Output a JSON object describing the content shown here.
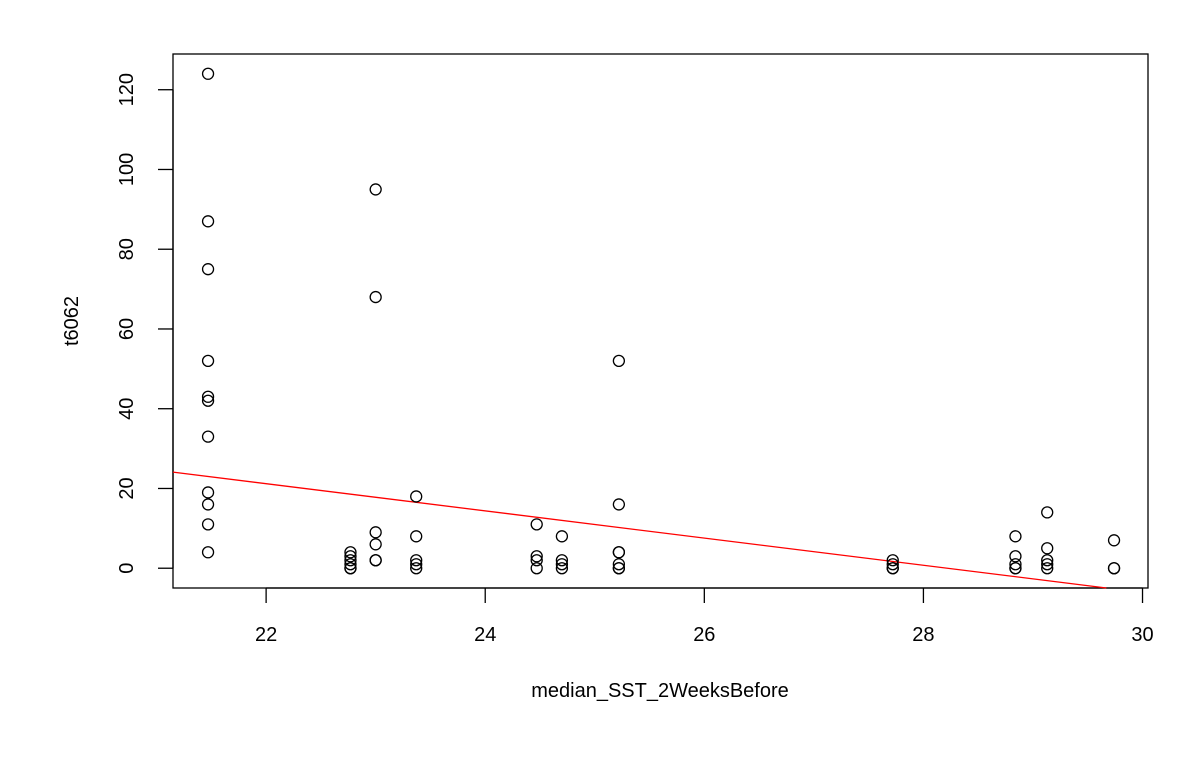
{
  "chart_data": {
    "type": "scatter",
    "title": "",
    "xlabel": "median_SST_2WeeksBefore",
    "ylabel": "t6062",
    "xlim": [
      21.15,
      30.05
    ],
    "ylim": [
      -4.96,
      128.96
    ],
    "x_ticks": [
      22,
      24,
      26,
      28,
      30
    ],
    "y_ticks": [
      0,
      20,
      40,
      60,
      80,
      100,
      120
    ],
    "x_tick_labels": [
      "22",
      "24",
      "26",
      "28",
      "30"
    ],
    "y_tick_labels": [
      "0",
      "20",
      "40",
      "60",
      "80",
      "100",
      "120"
    ],
    "grid": false,
    "legend": "none",
    "point_style": "open circle",
    "points": [
      {
        "x": 21.47,
        "y": 124
      },
      {
        "x": 21.47,
        "y": 87
      },
      {
        "x": 21.47,
        "y": 75
      },
      {
        "x": 21.47,
        "y": 52
      },
      {
        "x": 21.47,
        "y": 43
      },
      {
        "x": 21.47,
        "y": 42
      },
      {
        "x": 21.47,
        "y": 33
      },
      {
        "x": 21.47,
        "y": 19
      },
      {
        "x": 21.47,
        "y": 16
      },
      {
        "x": 21.47,
        "y": 11
      },
      {
        "x": 21.47,
        "y": 4
      },
      {
        "x": 22.77,
        "y": 4
      },
      {
        "x": 22.77,
        "y": 3
      },
      {
        "x": 22.77,
        "y": 2
      },
      {
        "x": 22.77,
        "y": 1
      },
      {
        "x": 22.77,
        "y": 0
      },
      {
        "x": 22.77,
        "y": 0
      },
      {
        "x": 23.0,
        "y": 95
      },
      {
        "x": 23.0,
        "y": 68
      },
      {
        "x": 23.0,
        "y": 9
      },
      {
        "x": 23.0,
        "y": 6
      },
      {
        "x": 23.0,
        "y": 2
      },
      {
        "x": 23.0,
        "y": 2
      },
      {
        "x": 23.37,
        "y": 18
      },
      {
        "x": 23.37,
        "y": 8
      },
      {
        "x": 23.37,
        "y": 2
      },
      {
        "x": 23.37,
        "y": 1
      },
      {
        "x": 23.37,
        "y": 0
      },
      {
        "x": 24.47,
        "y": 11
      },
      {
        "x": 24.47,
        "y": 3
      },
      {
        "x": 24.47,
        "y": 2
      },
      {
        "x": 24.47,
        "y": 0
      },
      {
        "x": 24.7,
        "y": 8
      },
      {
        "x": 24.7,
        "y": 2
      },
      {
        "x": 24.7,
        "y": 1
      },
      {
        "x": 24.7,
        "y": 0
      },
      {
        "x": 25.22,
        "y": 52
      },
      {
        "x": 25.22,
        "y": 16
      },
      {
        "x": 25.22,
        "y": 4
      },
      {
        "x": 25.22,
        "y": 4
      },
      {
        "x": 25.22,
        "y": 1
      },
      {
        "x": 25.22,
        "y": 0
      },
      {
        "x": 25.22,
        "y": 0
      },
      {
        "x": 27.72,
        "y": 2
      },
      {
        "x": 27.72,
        "y": 1
      },
      {
        "x": 27.72,
        "y": 0
      },
      {
        "x": 27.72,
        "y": 0
      },
      {
        "x": 28.84,
        "y": 8
      },
      {
        "x": 28.84,
        "y": 3
      },
      {
        "x": 28.84,
        "y": 1
      },
      {
        "x": 28.84,
        "y": 0
      },
      {
        "x": 28.84,
        "y": 0
      },
      {
        "x": 29.13,
        "y": 14
      },
      {
        "x": 29.13,
        "y": 5
      },
      {
        "x": 29.13,
        "y": 2
      },
      {
        "x": 29.13,
        "y": 1
      },
      {
        "x": 29.13,
        "y": 0
      },
      {
        "x": 29.74,
        "y": 7
      },
      {
        "x": 29.74,
        "y": 0
      },
      {
        "x": 29.74,
        "y": 0
      }
    ],
    "regression_line": {
      "color": "#ff0000",
      "from": {
        "x": 21.15,
        "y": 24.1
      },
      "to": {
        "x": 29.67,
        "y": -4.96
      }
    }
  }
}
